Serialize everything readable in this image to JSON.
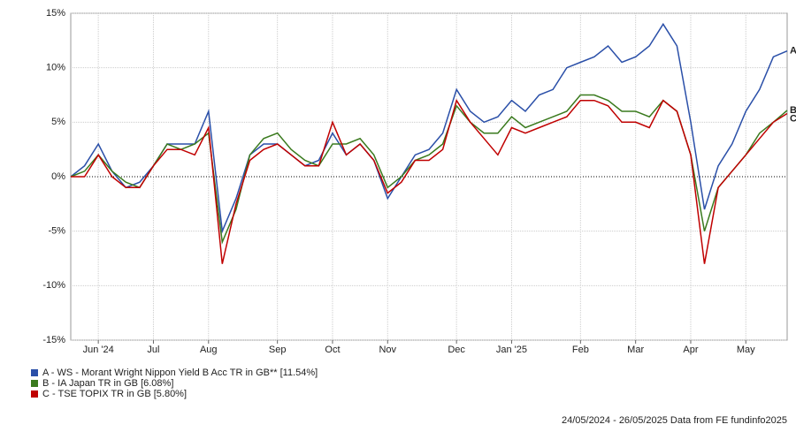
{
  "chart_data": {
    "type": "line",
    "categories": [
      null,
      null,
      "Jun '24",
      null,
      null,
      null,
      "Jul",
      null,
      null,
      null,
      "Aug",
      null,
      null,
      null,
      null,
      "Sep",
      null,
      null,
      null,
      "Oct",
      null,
      null,
      null,
      "Nov",
      null,
      null,
      null,
      null,
      "Dec",
      null,
      null,
      null,
      "Jan '25",
      null,
      null,
      null,
      null,
      "Feb",
      null,
      null,
      null,
      "Mar",
      null,
      null,
      null,
      "Apr",
      null,
      null,
      null,
      "May",
      null,
      null,
      null
    ],
    "series": [
      {
        "name": "A - WS - Morant Wright Nippon Yield B Acc TR in GB** [11.54%]",
        "end_label": "A",
        "color": "#2a4fa8",
        "values": [
          0,
          1,
          3,
          0.5,
          -1,
          -0.5,
          1,
          3,
          3,
          3,
          6,
          -5,
          -2,
          2,
          3,
          3,
          2,
          1,
          1.5,
          4,
          2,
          3,
          1.5,
          -2,
          0,
          2,
          2.5,
          4,
          8,
          6,
          5,
          5.5,
          7,
          6,
          7.5,
          8,
          10,
          10.5,
          11,
          12,
          10.5,
          11,
          12,
          14,
          12,
          5,
          -3,
          1,
          3,
          6,
          8,
          11,
          11.54
        ]
      },
      {
        "name": "B - IA Japan TR in GB [6.08%]",
        "end_label": "B",
        "color": "#3a7a1e",
        "values": [
          0,
          0.5,
          2,
          0.5,
          -0.5,
          -1,
          1,
          3,
          2.5,
          3,
          4,
          -6,
          -3,
          2,
          3.5,
          4,
          2.5,
          1.5,
          1,
          3,
          3,
          3.5,
          2,
          -1,
          0,
          1.5,
          2,
          3,
          6.5,
          5,
          4,
          4,
          5.5,
          4.5,
          5,
          5.5,
          6,
          7.5,
          7.5,
          7,
          6,
          6,
          5.5,
          7,
          6,
          2,
          -5,
          -1,
          0.5,
          2,
          4,
          5,
          6.08
        ]
      },
      {
        "name": "C - TSE TOPIX TR in GB [5.80%]",
        "end_label": "C",
        "color": "#c00000",
        "values": [
          0,
          0,
          2,
          0,
          -1,
          -1,
          1,
          2.5,
          2.5,
          2,
          4.5,
          -8,
          -2.5,
          1.5,
          2.5,
          3,
          2,
          1,
          1,
          5,
          2,
          3,
          1.5,
          -1.5,
          -0.5,
          1.5,
          1.5,
          2.5,
          7,
          5,
          3.5,
          2,
          4.5,
          4,
          4.5,
          5,
          5.5,
          7,
          7,
          6.5,
          5,
          5,
          4.5,
          7,
          6,
          2,
          -8,
          -1,
          0.5,
          2,
          3.5,
          5,
          5.8
        ]
      }
    ],
    "ylim": [
      -15,
      15
    ],
    "yticks": [
      {
        "value": -15,
        "label": "-15%"
      },
      {
        "value": -10,
        "label": "-10%"
      },
      {
        "value": -5,
        "label": "-5%"
      },
      {
        "value": 0,
        "label": "0%"
      },
      {
        "value": 5,
        "label": "5%"
      },
      {
        "value": 10,
        "label": "10%"
      },
      {
        "value": 15,
        "label": "15%"
      }
    ],
    "grid": true,
    "footer": "24/05/2024 - 26/05/2025 Data from FE fundinfo2025"
  }
}
